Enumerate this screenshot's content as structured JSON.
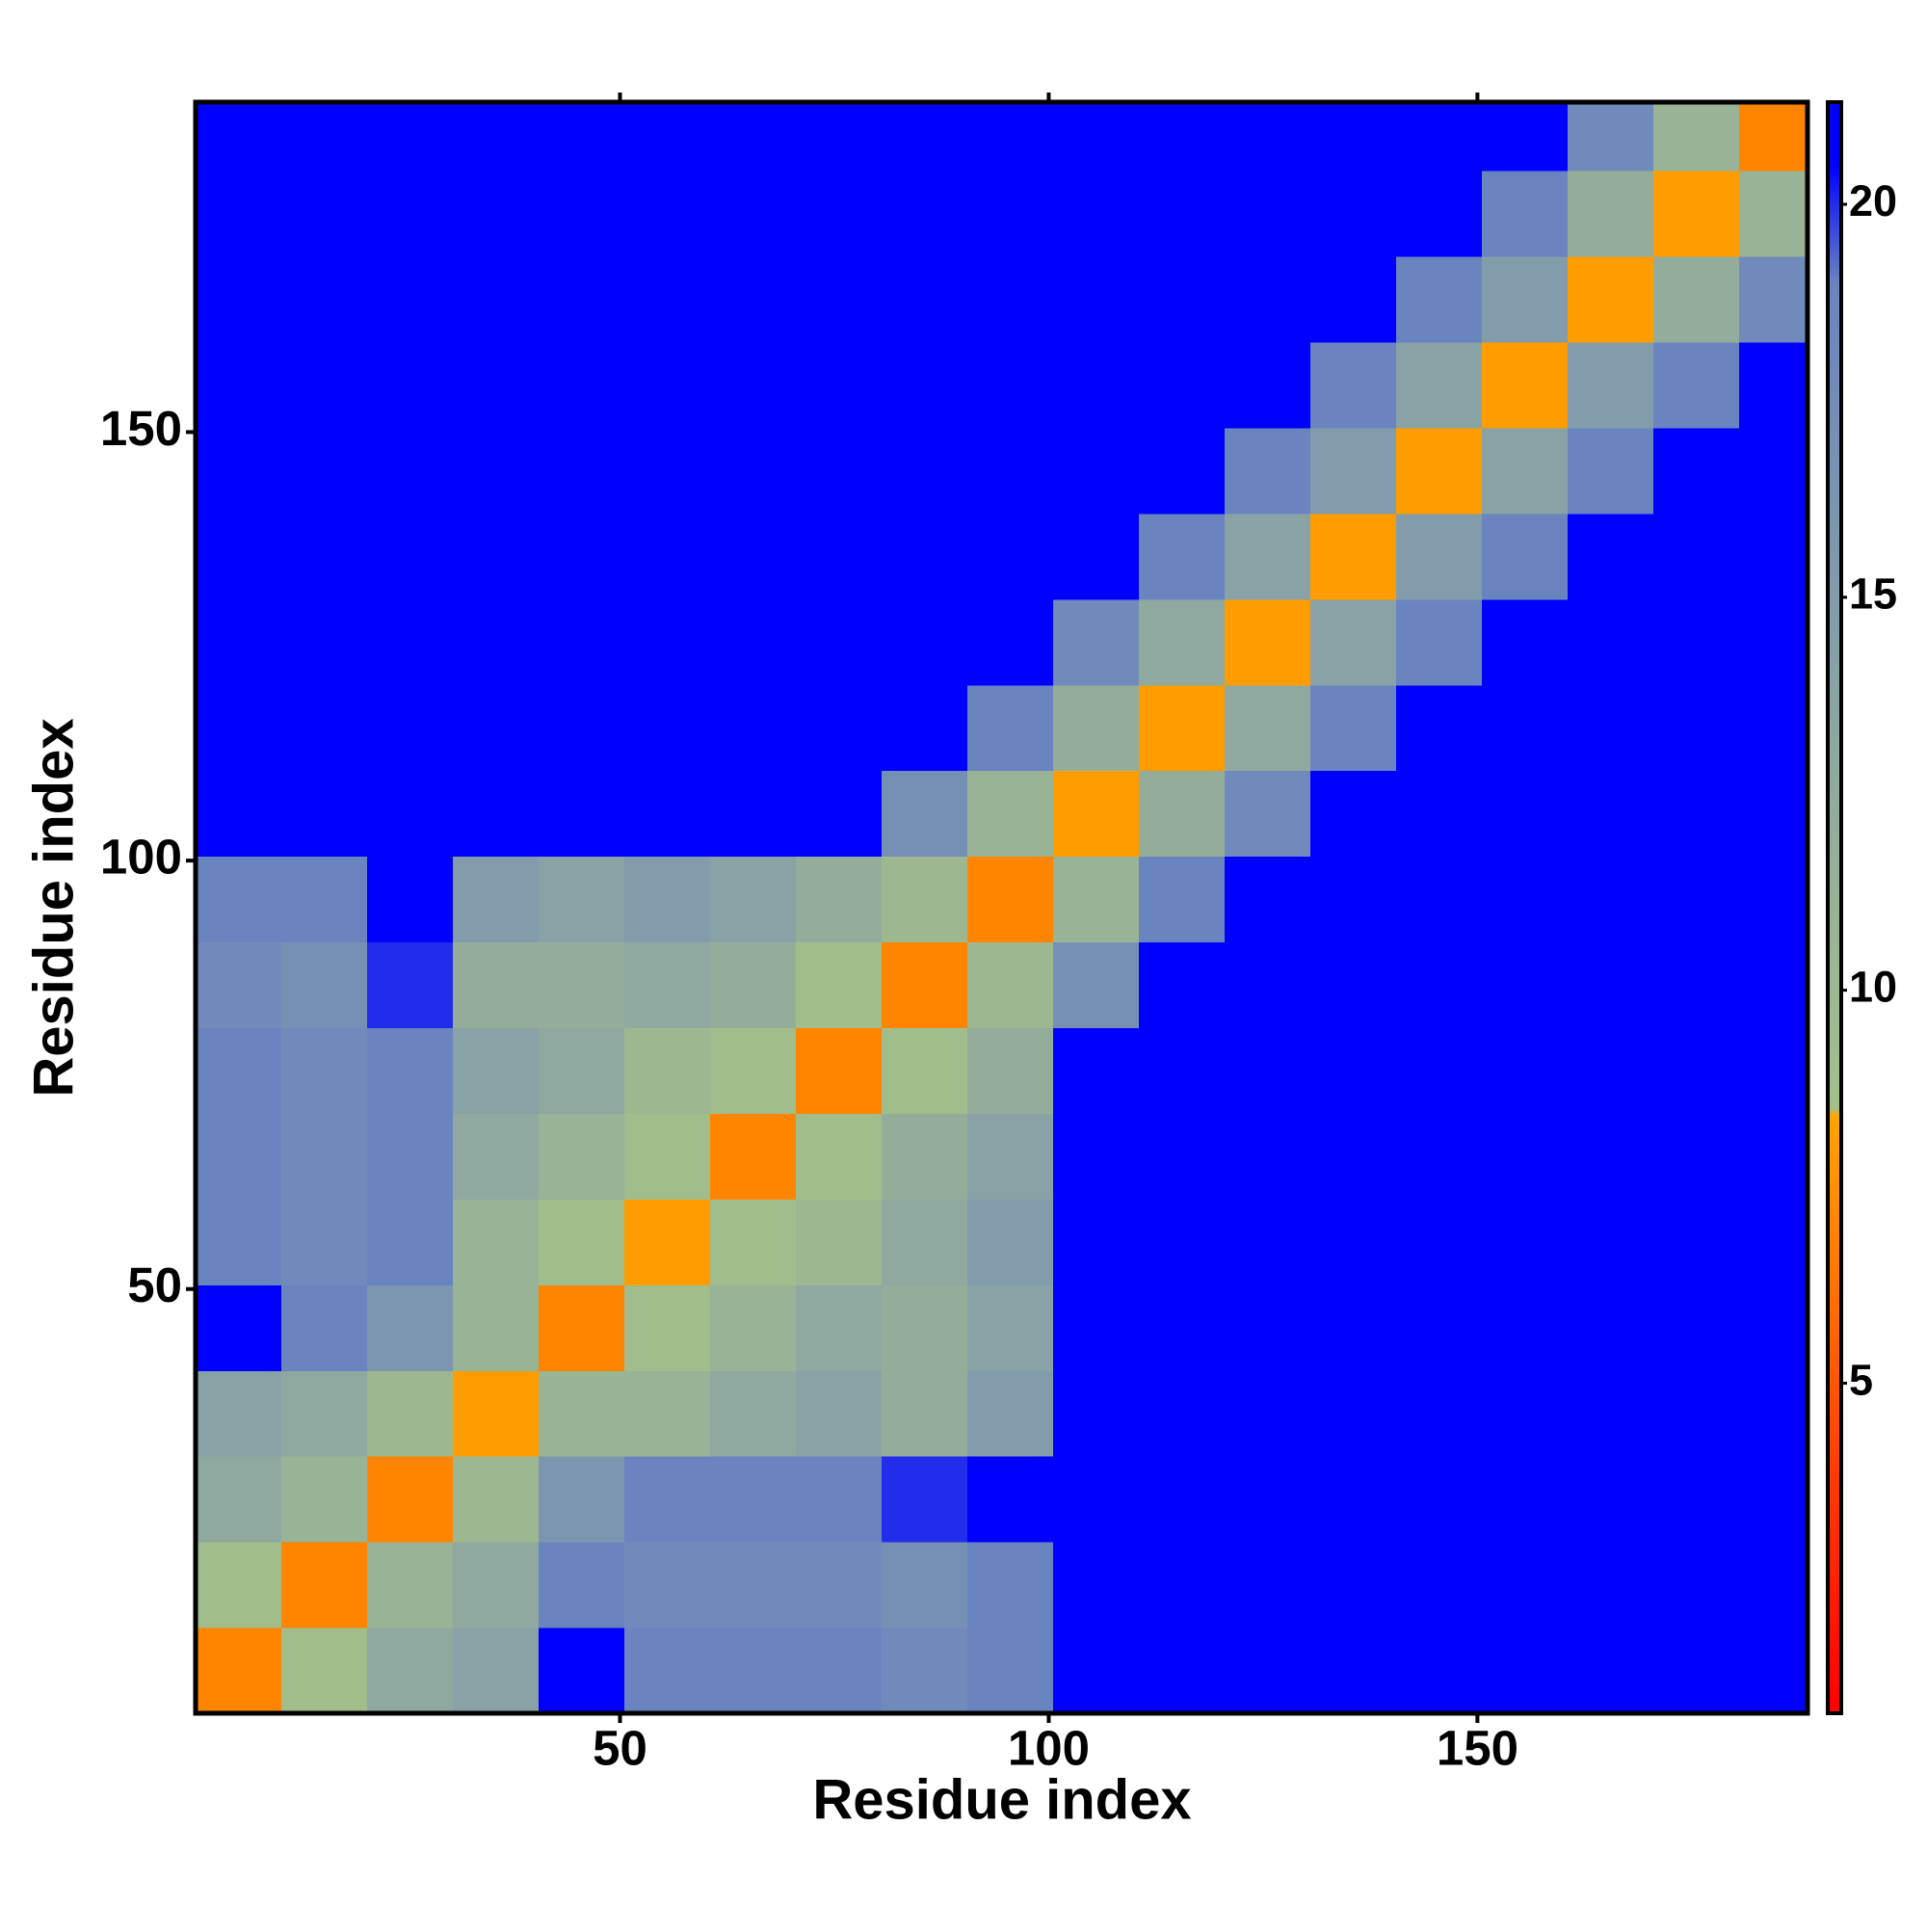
{
  "chart_data": {
    "type": "heatmap",
    "x_label": "Residue index",
    "y_label": "Residue index",
    "xlim": [
      0.5,
      188.5
    ],
    "ylim": [
      0.5,
      188.5
    ],
    "xticks": [
      50,
      100,
      150
    ],
    "yticks": [
      50,
      100,
      150
    ],
    "x_edges": [
      0.5,
      10.5,
      20.5,
      30.5,
      40.5,
      50.5,
      60.5,
      70.5,
      80.5,
      90.5,
      100.5,
      110.5,
      120.5,
      130.5,
      140.5,
      150.5,
      160.5,
      170.5,
      180.5,
      188.5
    ],
    "y_edges": [
      0.5,
      10.5,
      20.5,
      30.5,
      40.5,
      50.5,
      60.5,
      70.5,
      80.5,
      90.5,
      100.5,
      110.5,
      120.5,
      130.5,
      140.5,
      150.5,
      160.5,
      170.5,
      180.5,
      188.5
    ],
    "z": [
      [
        7,
        9,
        13,
        14,
        21,
        19,
        19,
        19,
        18,
        19,
        21,
        21,
        21,
        21,
        21,
        21,
        21,
        21,
        21
      ],
      [
        9,
        7,
        11,
        13,
        19,
        18,
        18,
        18,
        17,
        19,
        21,
        21,
        21,
        21,
        21,
        21,
        21,
        21,
        21
      ],
      [
        13,
        11,
        7,
        10,
        16,
        19,
        19,
        19,
        20,
        21,
        21,
        21,
        21,
        21,
        21,
        21,
        21,
        21,
        21
      ],
      [
        14,
        13,
        10,
        8,
        11,
        11,
        13,
        14,
        12,
        15,
        21,
        21,
        21,
        21,
        21,
        21,
        21,
        21,
        21
      ],
      [
        21,
        19,
        16,
        11,
        7,
        9,
        11,
        13,
        12,
        14,
        21,
        21,
        21,
        21,
        21,
        21,
        21,
        21,
        21
      ],
      [
        19,
        18,
        19,
        11,
        9,
        8,
        9,
        10,
        13,
        15,
        21,
        21,
        21,
        21,
        21,
        21,
        21,
        21,
        21
      ],
      [
        19,
        18,
        19,
        13,
        11,
        9,
        7,
        9,
        12,
        14,
        21,
        21,
        21,
        21,
        21,
        21,
        21,
        21,
        21
      ],
      [
        19,
        18,
        19,
        14,
        13,
        10,
        9,
        7,
        9,
        12,
        21,
        21,
        21,
        21,
        21,
        21,
        21,
        21,
        21
      ],
      [
        18,
        17,
        20,
        12,
        12,
        13,
        12,
        9,
        7,
        10,
        17,
        21,
        21,
        21,
        21,
        21,
        21,
        21,
        21
      ],
      [
        19,
        19,
        21,
        15,
        14,
        15,
        14,
        12,
        10,
        7,
        11,
        19,
        21,
        21,
        21,
        21,
        21,
        21,
        21
      ],
      [
        21,
        21,
        21,
        21,
        21,
        21,
        21,
        21,
        17,
        11,
        8,
        12,
        18,
        21,
        21,
        21,
        21,
        21,
        21
      ],
      [
        21,
        21,
        21,
        21,
        21,
        21,
        21,
        21,
        21,
        19,
        12,
        8,
        13,
        19,
        21,
        21,
        21,
        21,
        21
      ],
      [
        21,
        21,
        21,
        21,
        21,
        21,
        21,
        21,
        21,
        21,
        18,
        13,
        8,
        14,
        19,
        21,
        21,
        21,
        21
      ],
      [
        21,
        21,
        21,
        21,
        21,
        21,
        21,
        21,
        21,
        21,
        21,
        19,
        14,
        8,
        15,
        19,
        21,
        21,
        21
      ],
      [
        21,
        21,
        21,
        21,
        21,
        21,
        21,
        21,
        21,
        21,
        21,
        21,
        19,
        15,
        8,
        14,
        19,
        21,
        21
      ],
      [
        21,
        21,
        21,
        21,
        21,
        21,
        21,
        21,
        21,
        21,
        21,
        21,
        21,
        19,
        14,
        8,
        15,
        19,
        21
      ],
      [
        21,
        21,
        21,
        21,
        21,
        21,
        21,
        21,
        21,
        21,
        21,
        21,
        21,
        21,
        19,
        15,
        8,
        12,
        18
      ],
      [
        21,
        21,
        21,
        21,
        21,
        21,
        21,
        21,
        21,
        21,
        21,
        21,
        21,
        21,
        21,
        19,
        12,
        8,
        11
      ],
      [
        21,
        21,
        21,
        21,
        21,
        21,
        21,
        21,
        21,
        21,
        21,
        21,
        21,
        21,
        21,
        21,
        18,
        11,
        7
      ]
    ],
    "colorbar": {
      "lim": [
        0.8,
        21.3
      ],
      "ticks": [
        5,
        10,
        15,
        20
      ],
      "colorscale": [
        [
          0.8,
          "#ff0000"
        ],
        [
          4,
          "#ff4000"
        ],
        [
          8.4,
          "#ffa500"
        ],
        [
          8.5,
          "#a4c08a"
        ],
        [
          13,
          "#8fa8a0"
        ],
        [
          19,
          "#6a84c0"
        ],
        [
          20.5,
          "#0000ff"
        ],
        [
          21.3,
          "#0000ff"
        ]
      ]
    }
  }
}
